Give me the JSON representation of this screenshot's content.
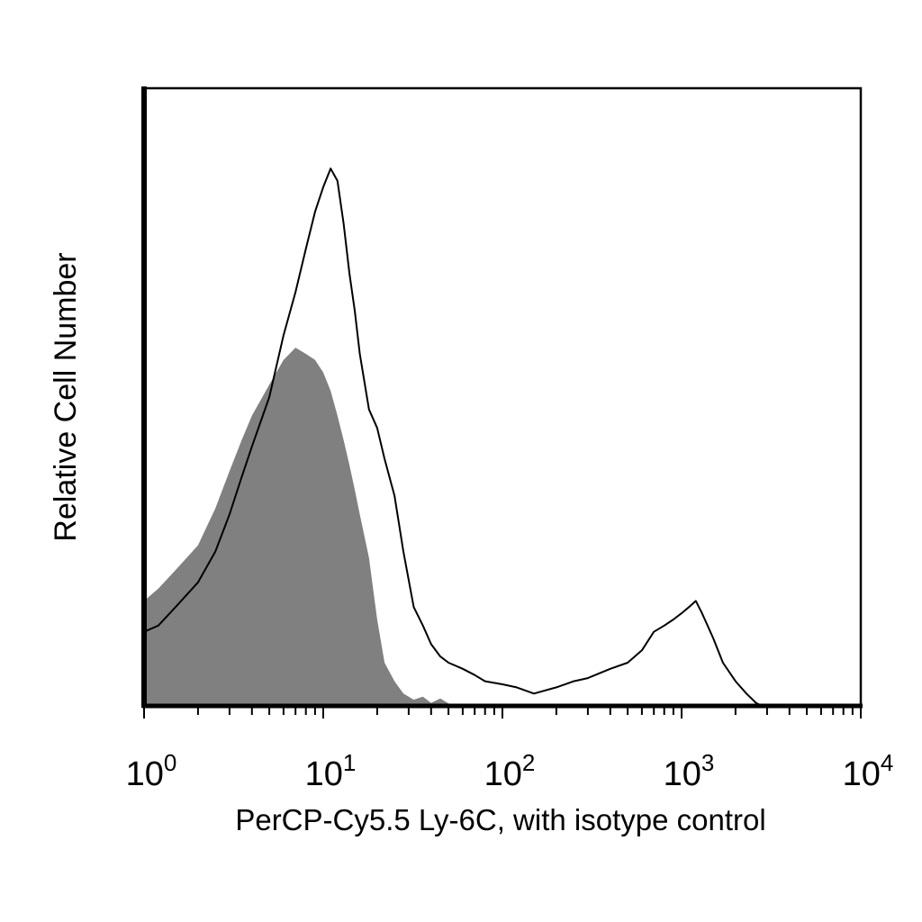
{
  "chart_data": {
    "type": "area",
    "scale": "log",
    "xlabel": "PerCP-Cy5.5 Ly-6C, with isotype control",
    "ylabel": "Relative Cell Number",
    "xlim": [
      1,
      10000
    ],
    "ylim": [
      0,
      1
    ],
    "grid": false,
    "legend": "none",
    "x_ticks": [
      {
        "base": "10",
        "exp": "0"
      },
      {
        "base": "10",
        "exp": "1"
      },
      {
        "base": "10",
        "exp": "2"
      },
      {
        "base": "10",
        "exp": "3"
      },
      {
        "base": "10",
        "exp": "4"
      }
    ],
    "series": [
      {
        "style": "filled",
        "color": "#808080",
        "x": [
          1,
          1.2,
          1.5,
          2,
          2.5,
          3,
          3.5,
          4,
          5,
          6,
          7,
          8,
          9,
          10,
          11,
          12,
          13,
          14,
          15,
          16,
          18,
          20,
          22,
          25,
          28,
          32,
          36,
          40,
          45,
          50,
          55
        ],
        "y": [
          0.17,
          0.19,
          0.22,
          0.26,
          0.32,
          0.38,
          0.43,
          0.47,
          0.52,
          0.56,
          0.58,
          0.57,
          0.56,
          0.54,
          0.51,
          0.47,
          0.43,
          0.39,
          0.35,
          0.31,
          0.24,
          0.14,
          0.07,
          0.04,
          0.02,
          0.01,
          0.015,
          0.005,
          0.012,
          0.004,
          0
        ]
      },
      {
        "style": "outline",
        "color": "#000000",
        "x": [
          1,
          1.2,
          1.5,
          2,
          2.5,
          3,
          3.5,
          4,
          5,
          6,
          7,
          8,
          9,
          10,
          11,
          12,
          13,
          14,
          15,
          16,
          18,
          20,
          22,
          25,
          28,
          32,
          36,
          40,
          45,
          50,
          60,
          70,
          80,
          100,
          120,
          150,
          200,
          250,
          300,
          400,
          500,
          600,
          700,
          800,
          900,
          1000,
          1100,
          1200,
          1300,
          1500,
          1700,
          2000,
          2300,
          2600,
          2800
        ],
        "y": [
          0.12,
          0.13,
          0.16,
          0.2,
          0.25,
          0.31,
          0.37,
          0.42,
          0.5,
          0.6,
          0.67,
          0.74,
          0.8,
          0.84,
          0.87,
          0.85,
          0.78,
          0.7,
          0.64,
          0.57,
          0.48,
          0.45,
          0.4,
          0.34,
          0.25,
          0.16,
          0.13,
          0.1,
          0.08,
          0.07,
          0.06,
          0.05,
          0.04,
          0.035,
          0.03,
          0.02,
          0.03,
          0.04,
          0.045,
          0.06,
          0.07,
          0.09,
          0.12,
          0.13,
          0.14,
          0.15,
          0.16,
          0.17,
          0.15,
          0.11,
          0.07,
          0.04,
          0.02,
          0.005,
          0
        ]
      }
    ]
  }
}
